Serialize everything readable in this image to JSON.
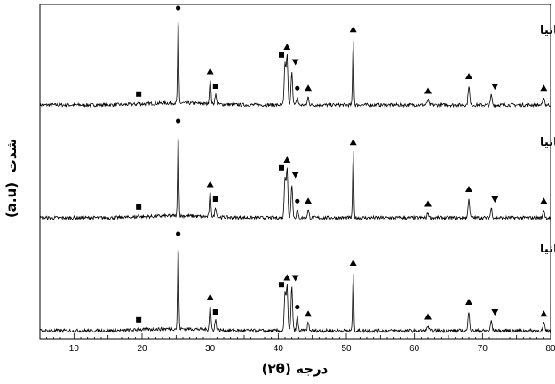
{
  "chart_data": {
    "type": "line",
    "xlabel": "درجه (۲θ)",
    "ylabel": "شدت",
    "yunit": "(a.u)",
    "xlim": [
      5,
      80
    ],
    "xticks": [
      10,
      20,
      30,
      40,
      50,
      60,
      70,
      80
    ],
    "series": [
      {
        "name": "یک درصد وزنی نانوتیتانیا",
        "peaks": [
          {
            "x": 25.3,
            "height": 0.9,
            "marker": "circle"
          },
          {
            "x": 30.0,
            "height": 0.25,
            "marker": "triangle-up"
          },
          {
            "x": 30.8,
            "height": 0.1,
            "marker": "square"
          },
          {
            "x": 41.0,
            "height": 0.42,
            "marker": "square"
          },
          {
            "x": 41.3,
            "height": 0.5,
            "marker": "triangle-up"
          },
          {
            "x": 42.0,
            "height": 0.35,
            "marker": "triangle-down"
          },
          {
            "x": 42.8,
            "height": 0.08,
            "marker": "circle"
          },
          {
            "x": 44.4,
            "height": 0.08,
            "marker": "triangle-up"
          },
          {
            "x": 51.0,
            "height": 0.68,
            "marker": "triangle-up"
          },
          {
            "x": 62.0,
            "height": 0.05,
            "marker": "triangle-up"
          },
          {
            "x": 68.0,
            "height": 0.2,
            "marker": "triangle-up"
          },
          {
            "x": 71.3,
            "height": 0.1,
            "marker": "triangle-down"
          },
          {
            "x": 79.0,
            "height": 0.08,
            "marker": "triangle-up"
          },
          {
            "x": 19.5,
            "height": 0.02,
            "marker": "square"
          }
        ]
      },
      {
        "name": "نیم درصد وزنی نانوتیتانیا",
        "peaks": [
          {
            "x": 25.3,
            "height": 0.9,
            "marker": "circle"
          },
          {
            "x": 30.0,
            "height": 0.25,
            "marker": "triangle-up"
          },
          {
            "x": 30.8,
            "height": 0.1,
            "marker": "square"
          },
          {
            "x": 41.0,
            "height": 0.42,
            "marker": "square"
          },
          {
            "x": 41.3,
            "height": 0.5,
            "marker": "triangle-up"
          },
          {
            "x": 42.0,
            "height": 0.35,
            "marker": "triangle-down"
          },
          {
            "x": 42.8,
            "height": 0.08,
            "marker": "circle"
          },
          {
            "x": 44.4,
            "height": 0.08,
            "marker": "triangle-up"
          },
          {
            "x": 51.0,
            "height": 0.68,
            "marker": "triangle-up"
          },
          {
            "x": 62.0,
            "height": 0.05,
            "marker": "triangle-up"
          },
          {
            "x": 68.0,
            "height": 0.2,
            "marker": "triangle-up"
          },
          {
            "x": 71.3,
            "height": 0.1,
            "marker": "triangle-down"
          },
          {
            "x": 79.0,
            "height": 0.08,
            "marker": "triangle-up"
          },
          {
            "x": 19.5,
            "height": 0.02,
            "marker": "square"
          }
        ]
      },
      {
        "name": "صفر درصد وزنی نانوتیتانیا",
        "peaks": [
          {
            "x": 25.3,
            "height": 0.9,
            "marker": "circle"
          },
          {
            "x": 30.0,
            "height": 0.25,
            "marker": "triangle-up"
          },
          {
            "x": 30.8,
            "height": 0.1,
            "marker": "square"
          },
          {
            "x": 41.0,
            "height": 0.38,
            "marker": "square"
          },
          {
            "x": 41.3,
            "height": 0.45,
            "marker": "triangle-up"
          },
          {
            "x": 42.0,
            "height": 0.45,
            "marker": "triangle-down"
          },
          {
            "x": 42.8,
            "height": 0.15,
            "marker": "circle"
          },
          {
            "x": 44.4,
            "height": 0.08,
            "marker": "triangle-up"
          },
          {
            "x": 51.0,
            "height": 0.6,
            "marker": "triangle-up"
          },
          {
            "x": 62.0,
            "height": 0.05,
            "marker": "triangle-up"
          },
          {
            "x": 68.0,
            "height": 0.2,
            "marker": "triangle-up"
          },
          {
            "x": 71.3,
            "height": 0.1,
            "marker": "triangle-down"
          },
          {
            "x": 79.0,
            "height": 0.08,
            "marker": "triangle-up"
          },
          {
            "x": 19.5,
            "height": 0.02,
            "marker": "square"
          }
        ]
      }
    ]
  }
}
